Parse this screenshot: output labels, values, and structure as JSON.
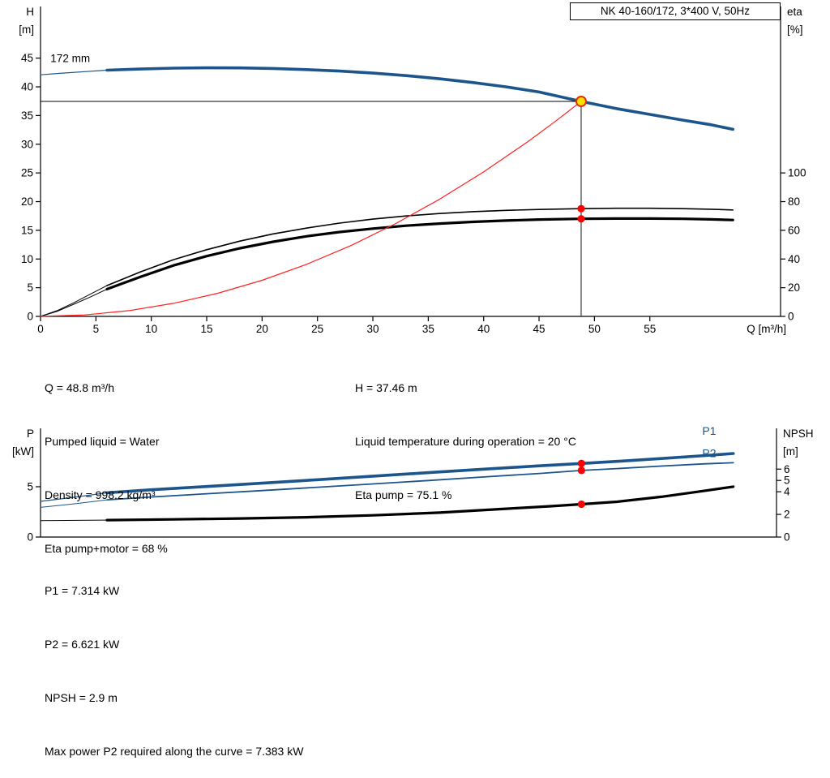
{
  "title_box": {
    "label": "NK 40-160/172, 3*400 V, 50Hz"
  },
  "info_top": {
    "left": [
      "Q = 48.8 m³/h",
      "Pumped liquid = Water",
      "Density = 998.2 kg/m³",
      "Eta pump+motor = 68 %"
    ],
    "right": [
      "H = 37.46 m",
      "Liquid temperature during operation = 20 °C",
      "Eta pump = 75.1 %"
    ]
  },
  "info_bottom": [
    "P1 = 7.314 kW",
    "P2 = 6.621 kW",
    "NPSH = 2.9 m",
    "Max power P2 required along the curve = 7.383 kW"
  ],
  "chart_data": [
    {
      "type": "line",
      "name": "qh-eta-chart",
      "title": "NK 40-160/172, 3*400 V, 50Hz",
      "x_axis": {
        "label": "Q [m³/h]",
        "min": 0,
        "max": 66.8,
        "ticks": [
          0,
          5,
          10,
          15,
          20,
          25,
          30,
          35,
          40,
          45,
          50,
          55
        ]
      },
      "y_left": {
        "label_lines": [
          "H",
          "[m]"
        ],
        "min": 0,
        "max": 54,
        "ticks": [
          0,
          5,
          10,
          15,
          20,
          25,
          30,
          35,
          40,
          45
        ]
      },
      "y_right": {
        "label_lines": [
          "eta",
          "[%]"
        ],
        "min": 0,
        "max": 216,
        "ticks": [
          0,
          20,
          40,
          60,
          80,
          100
        ]
      },
      "annotations": [
        {
          "name": "impeller-diameter-label",
          "text": "172 mm",
          "x": 0.9,
          "y": 44.3,
          "axis": "left",
          "color": "#000000",
          "anchor": "start",
          "size": 13.5
        }
      ],
      "series": [
        {
          "name": "head-curve-lead",
          "axis": "left",
          "color": "#1c548c",
          "width": 1.2,
          "points": [
            [
              0,
              42.1
            ],
            [
              2,
              42.4
            ],
            [
              4,
              42.65
            ],
            [
              6,
              42.9
            ]
          ]
        },
        {
          "name": "head-curve",
          "axis": "left",
          "color": "#1c548c",
          "width": 3.6,
          "points": [
            [
              6,
              42.9
            ],
            [
              9,
              43.1
            ],
            [
              12,
              43.25
            ],
            [
              15,
              43.32
            ],
            [
              18,
              43.3
            ],
            [
              21,
              43.2
            ],
            [
              24,
              43.0
            ],
            [
              27,
              42.75
            ],
            [
              30,
              42.4
            ],
            [
              33,
              41.95
            ],
            [
              36,
              41.4
            ],
            [
              39,
              40.75
            ],
            [
              42,
              40.0
            ],
            [
              45,
              39.1
            ],
            [
              48.8,
              37.46
            ],
            [
              52,
              36.2
            ],
            [
              55,
              35.2
            ],
            [
              58,
              34.2
            ],
            [
              60.5,
              33.4
            ],
            [
              62.5,
              32.6
            ]
          ]
        },
        {
          "name": "eta-pump-curve-lead",
          "axis": "right",
          "color": "#000000",
          "width": 1,
          "points": [
            [
              0,
              0
            ],
            [
              1.5,
              4
            ],
            [
              3,
              9.5
            ],
            [
              4.5,
              15.5
            ],
            [
              6,
              21.5
            ]
          ]
        },
        {
          "name": "eta-pump-curve",
          "axis": "right",
          "color": "#000000",
          "width": 1.6,
          "points": [
            [
              6,
              21.5
            ],
            [
              9,
              31
            ],
            [
              12,
              39.5
            ],
            [
              15,
              46.5
            ],
            [
              18,
              52.5
            ],
            [
              21,
              57.5
            ],
            [
              24,
              61.5
            ],
            [
              27,
              65
            ],
            [
              30,
              67.8
            ],
            [
              33,
              70
            ],
            [
              36,
              71.7
            ],
            [
              39,
              73
            ],
            [
              42,
              73.9
            ],
            [
              45,
              74.5
            ],
            [
              48.8,
              75.1
            ],
            [
              52,
              75.35
            ],
            [
              55,
              75.35
            ],
            [
              58,
              75.1
            ],
            [
              60.5,
              74.7
            ],
            [
              62.5,
              74.2
            ]
          ]
        },
        {
          "name": "eta-pump-motor-curve-lead",
          "axis": "right",
          "color": "#000000",
          "width": 1,
          "points": [
            [
              0,
              0
            ],
            [
              1.5,
              3.5
            ],
            [
              3,
              8.5
            ],
            [
              4.5,
              13.5
            ],
            [
              6,
              19
            ]
          ]
        },
        {
          "name": "eta-pump-motor-curve",
          "axis": "right",
          "color": "#000000",
          "width": 3.2,
          "points": [
            [
              6,
              19
            ],
            [
              9,
              27.5
            ],
            [
              12,
              35.5
            ],
            [
              15,
              42
            ],
            [
              18,
              47.5
            ],
            [
              21,
              52
            ],
            [
              24,
              55.8
            ],
            [
              27,
              58.8
            ],
            [
              30,
              61.2
            ],
            [
              33,
              63.2
            ],
            [
              36,
              64.7
            ],
            [
              39,
              65.9
            ],
            [
              42,
              66.8
            ],
            [
              45,
              67.5
            ],
            [
              48.8,
              68.0
            ],
            [
              52,
              68.2
            ],
            [
              55,
              68.2
            ],
            [
              58,
              68.0
            ],
            [
              60.5,
              67.6
            ],
            [
              62.5,
              67.2
            ]
          ]
        },
        {
          "name": "system-curve",
          "axis": "left",
          "color": "#ff2020",
          "width": 1.2,
          "points": [
            [
              0,
              0
            ],
            [
              4,
              0.25
            ],
            [
              8,
              1.01
            ],
            [
              12,
              2.27
            ],
            [
              16,
              4.03
            ],
            [
              20,
              6.29
            ],
            [
              24,
              9.06
            ],
            [
              28,
              12.33
            ],
            [
              32,
              16.11
            ],
            [
              36,
              20.39
            ],
            [
              40,
              25.17
            ],
            [
              44,
              30.46
            ],
            [
              46.5,
              34.02
            ],
            [
              48.8,
              37.46
            ]
          ]
        }
      ],
      "markers": [
        {
          "type": "crosshair",
          "name": "duty-point-crosshair",
          "x": 48.8,
          "y": 37.46,
          "axis": "left",
          "h_color": "#000000",
          "v_color": "#3d3d3d"
        },
        {
          "type": "dot",
          "name": "eta-pump-point",
          "x": 48.8,
          "y": 75.1,
          "axis": "right",
          "fill": "#ff0000",
          "r": 4.6
        },
        {
          "type": "dot",
          "name": "eta-pump-motor-point",
          "x": 48.8,
          "y": 68,
          "axis": "right",
          "fill": "#ff0000",
          "r": 4.6
        },
        {
          "type": "dot",
          "name": "duty-point",
          "x": 48.8,
          "y": 37.46,
          "axis": "left",
          "fill": "#ffdf00",
          "stroke": "#e03000",
          "stroke_width": 2,
          "r": 6
        }
      ],
      "operating_point": {
        "Q": 48.8,
        "H": 37.46,
        "eta_pump": 75.1,
        "eta_pump_motor": 68
      }
    },
    {
      "type": "line",
      "name": "power-npsh-chart",
      "x_axis": {
        "label": "",
        "min": 0,
        "max": 66.4,
        "ticks": []
      },
      "y_left": {
        "label_lines": [
          "P",
          "[kW]"
        ],
        "min": 0,
        "max": 10.8,
        "ticks": [
          0,
          5
        ]
      },
      "y_right": {
        "label_lines": [
          "NPSH",
          "[m]"
        ],
        "min": 0,
        "max": 9.6,
        "ticks": [
          0,
          2,
          4,
          5,
          6
        ]
      },
      "annotations": [
        {
          "name": "p1-label",
          "text": "P1",
          "x": 59.7,
          "y": 10.15,
          "axis": "left",
          "color": "#1c548c",
          "anchor": "start",
          "size": 14
        },
        {
          "name": "p2-label",
          "text": "P2",
          "x": 59.7,
          "y": 7.95,
          "axis": "left",
          "color": "#1c548c",
          "anchor": "start",
          "size": 14
        }
      ],
      "series": [
        {
          "name": "p1-curve-lead",
          "axis": "left",
          "color": "#1c548c",
          "width": 1.2,
          "points": [
            [
              0,
              3.55
            ],
            [
              3,
              3.95
            ],
            [
              6,
              4.4
            ]
          ]
        },
        {
          "name": "p1-curve",
          "axis": "left",
          "color": "#1c548c",
          "width": 3.6,
          "points": [
            [
              6,
              4.4
            ],
            [
              10,
              4.7
            ],
            [
              15,
              5.02
            ],
            [
              20,
              5.35
            ],
            [
              25,
              5.7
            ],
            [
              30,
              6.05
            ],
            [
              35,
              6.4
            ],
            [
              40,
              6.75
            ],
            [
              45,
              7.08
            ],
            [
              48.8,
              7.314
            ],
            [
              52,
              7.52
            ],
            [
              56,
              7.8
            ],
            [
              60,
              8.1
            ],
            [
              62.5,
              8.3
            ]
          ]
        },
        {
          "name": "p2-curve-lead",
          "axis": "left",
          "color": "#1c548c",
          "width": 1,
          "points": [
            [
              0,
              2.95
            ],
            [
              3,
              3.3
            ],
            [
              6,
              3.7
            ]
          ]
        },
        {
          "name": "p2-curve",
          "axis": "left",
          "color": "#1c548c",
          "width": 1.8,
          "points": [
            [
              6,
              3.7
            ],
            [
              10,
              3.98
            ],
            [
              15,
              4.3
            ],
            [
              20,
              4.62
            ],
            [
              25,
              4.95
            ],
            [
              30,
              5.28
            ],
            [
              35,
              5.62
            ],
            [
              40,
              5.97
            ],
            [
              45,
              6.32
            ],
            [
              48.8,
              6.621
            ],
            [
              52,
              6.8
            ],
            [
              56,
              7.05
            ],
            [
              60,
              7.28
            ],
            [
              62.5,
              7.383
            ]
          ]
        },
        {
          "name": "npsh-curve-lead",
          "axis": "right",
          "color": "#000000",
          "width": 1,
          "points": [
            [
              0,
              1.45
            ],
            [
              6,
              1.5
            ]
          ]
        },
        {
          "name": "npsh-curve",
          "axis": "right",
          "color": "#000000",
          "width": 3.2,
          "points": [
            [
              6,
              1.5
            ],
            [
              12,
              1.56
            ],
            [
              18,
              1.64
            ],
            [
              24,
              1.75
            ],
            [
              30,
              1.92
            ],
            [
              36,
              2.16
            ],
            [
              42,
              2.5
            ],
            [
              46,
              2.72
            ],
            [
              48.8,
              2.9
            ],
            [
              52,
              3.12
            ],
            [
              56,
              3.55
            ],
            [
              60,
              4.1
            ],
            [
              62.5,
              4.45
            ]
          ]
        }
      ],
      "markers": [
        {
          "type": "dot",
          "name": "p1-point",
          "x": 48.8,
          "y": 7.314,
          "axis": "left",
          "fill": "#ff0000",
          "r": 4.6
        },
        {
          "type": "dot",
          "name": "p2-point",
          "x": 48.8,
          "y": 6.621,
          "axis": "left",
          "fill": "#ff0000",
          "r": 4.6
        },
        {
          "type": "dot",
          "name": "npsh-point",
          "x": 48.8,
          "y": 2.9,
          "axis": "right",
          "fill": "#ff0000",
          "r": 4.6
        }
      ],
      "operating_point": {
        "Q": 48.8,
        "P1": 7.314,
        "P2": 6.621,
        "NPSH": 2.9
      }
    }
  ],
  "colors": {
    "curve_blue": "#1c548c",
    "curve_black": "#000000",
    "system_red": "#ff2020",
    "duty_yellow": "#ffdf00",
    "dot_red": "#ff0000"
  }
}
